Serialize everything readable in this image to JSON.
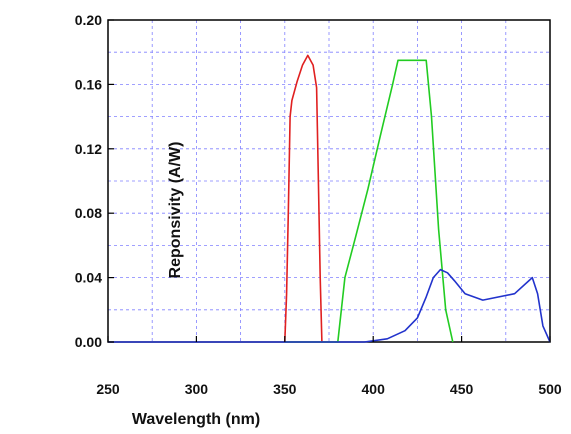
{
  "chart_data": {
    "type": "line",
    "xlabel": "Wavelength (nm)",
    "ylabel": "Reponsivity (A/W)",
    "xlim": [
      250,
      500
    ],
    "ylim": [
      0.0,
      0.2
    ],
    "x_ticks": [
      "250",
      "300",
      "350",
      "400",
      "450",
      "500"
    ],
    "y_ticks": [
      "0.00",
      "0.04",
      "0.08",
      "0.12",
      "0.16",
      "0.20"
    ],
    "grid": true,
    "series": [
      {
        "color": "#e02020",
        "points": [
          [
            350,
            0.0
          ],
          [
            351,
            0.03
          ],
          [
            352,
            0.08
          ],
          [
            353,
            0.14
          ],
          [
            354,
            0.15
          ],
          [
            357,
            0.162
          ],
          [
            360,
            0.172
          ],
          [
            363,
            0.178
          ],
          [
            366,
            0.172
          ],
          [
            368,
            0.158
          ],
          [
            369,
            0.1
          ],
          [
            370,
            0.04
          ],
          [
            371,
            0.0
          ]
        ]
      },
      {
        "color": "#22cc22",
        "points": [
          [
            350,
            0.0
          ],
          [
            380,
            0.0
          ],
          [
            384,
            0.04
          ],
          [
            390,
            0.065
          ],
          [
            397,
            0.095
          ],
          [
            404,
            0.128
          ],
          [
            411,
            0.16
          ],
          [
            414,
            0.175
          ],
          [
            430,
            0.175
          ],
          [
            433,
            0.14
          ],
          [
            437,
            0.07
          ],
          [
            441,
            0.02
          ],
          [
            445,
            0.0
          ]
        ]
      },
      {
        "color": "#2233cc",
        "points": [
          [
            250,
            0.0
          ],
          [
            300,
            0.0
          ],
          [
            350,
            0.0
          ],
          [
            395,
            0.0
          ],
          [
            408,
            0.002
          ],
          [
            418,
            0.007
          ],
          [
            425,
            0.015
          ],
          [
            430,
            0.028
          ],
          [
            434,
            0.04
          ],
          [
            438,
            0.045
          ],
          [
            442,
            0.043
          ],
          [
            446,
            0.038
          ],
          [
            452,
            0.03
          ],
          [
            462,
            0.026
          ],
          [
            480,
            0.03
          ],
          [
            490,
            0.04
          ],
          [
            493,
            0.03
          ],
          [
            496,
            0.01
          ],
          [
            500,
            0.0
          ]
        ]
      }
    ]
  }
}
